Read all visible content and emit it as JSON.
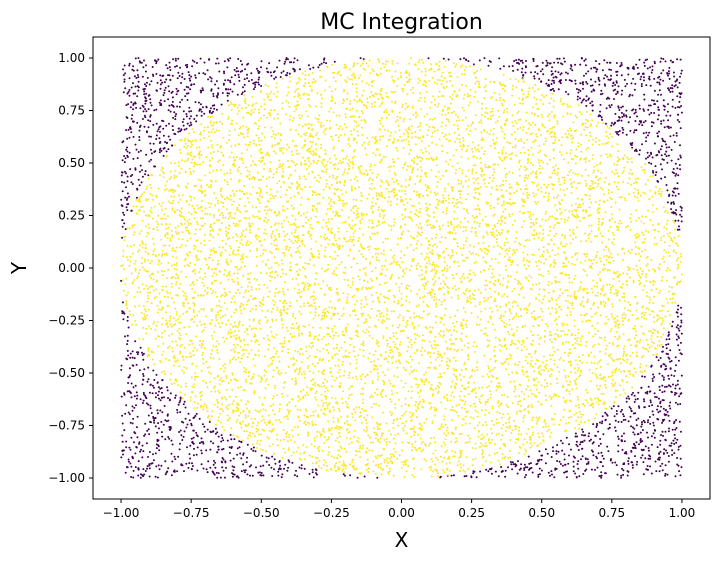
{
  "chart_data": {
    "type": "scatter",
    "title": "MC Integration",
    "xlabel": "X",
    "ylabel": "Y",
    "xlim": [
      -1.1,
      1.1
    ],
    "ylim": [
      -1.1,
      1.1
    ],
    "xticks": [
      -1.0,
      -0.75,
      -0.5,
      -0.25,
      0.0,
      0.25,
      0.5,
      0.75,
      1.0
    ],
    "yticks": [
      -1.0,
      -0.75,
      -0.5,
      -0.25,
      0.0,
      0.25,
      0.5,
      0.75,
      1.0
    ],
    "xtick_labels": [
      "−1.00",
      "−0.75",
      "−0.50",
      "−0.25",
      "0.00",
      "0.25",
      "0.50",
      "0.75",
      "1.00"
    ],
    "ytick_labels": [
      "−1.00",
      "−0.75",
      "−0.50",
      "−0.25",
      "0.00",
      "0.25",
      "0.50",
      "0.75",
      "1.00"
    ],
    "grid": false,
    "legend": "none",
    "sampling_region": {
      "x": [
        -1.0,
        1.0
      ],
      "y": [
        -1.0,
        1.0
      ]
    },
    "classification_boundary": "circle x^2 + y^2 <= 1",
    "colors": {
      "inside": "#fde725",
      "outside": "#440154"
    },
    "approx_point_count": 10000
  }
}
